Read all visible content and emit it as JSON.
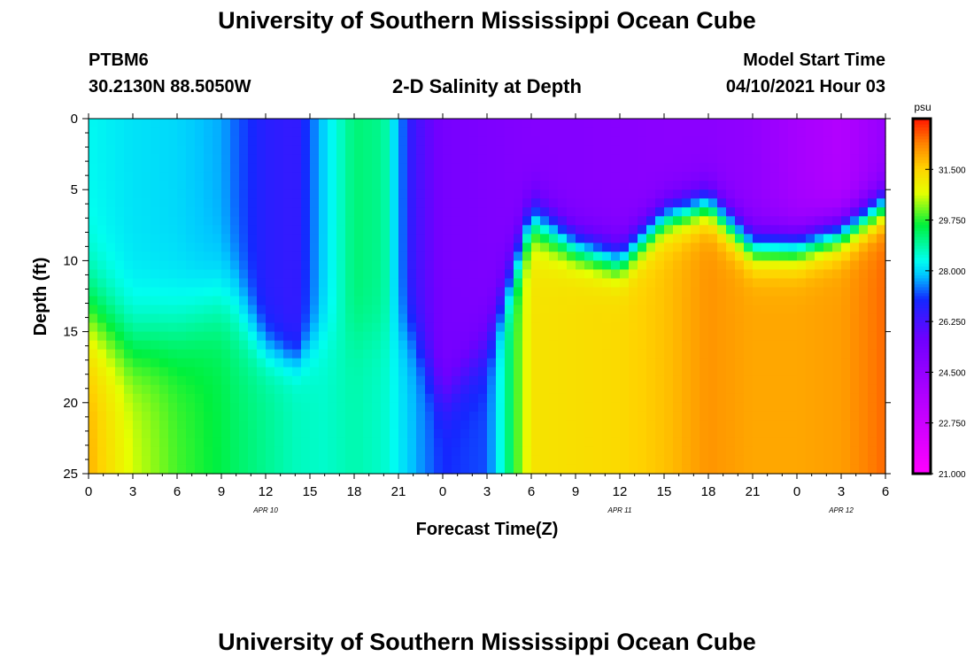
{
  "page": {
    "title_top": "University of Southern Mississippi Ocean Cube",
    "title_bottom": "University of Southern Mississippi Ocean Cube",
    "station_id": "PTBM6",
    "station_coords": "30.2130N  88.5050W",
    "plot_title": "2-D Salinity at Depth",
    "model_start_label": "Model Start Time",
    "model_start_value": "04/10/2021 Hour 03"
  },
  "chart_data": {
    "type": "heatmap",
    "title": "2-D Salinity at Depth",
    "xlabel": "Forecast Time(Z)",
    "ylabel": "Depth (ft)",
    "x_range_hours": [
      0,
      54
    ],
    "y_range_ft": [
      0,
      25
    ],
    "x_ticks": [
      "0",
      "3",
      "6",
      "9",
      "12",
      "15",
      "18",
      "21",
      "0",
      "3",
      "6",
      "9",
      "12",
      "15",
      "18",
      "21",
      "0",
      "3",
      "6"
    ],
    "y_ticks": [
      "0",
      "5",
      "10",
      "15",
      "20",
      "25"
    ],
    "date_labels": [
      {
        "text": "APR 10",
        "hour": 12
      },
      {
        "text": "APR 11",
        "hour": 36
      },
      {
        "text": "APR 12",
        "hour": 51
      }
    ],
    "colorbar": {
      "unit": "psu",
      "min": 21.0,
      "max": 33.25,
      "ticks": [
        "21.000",
        "22.750",
        "24.500",
        "26.250",
        "28.000",
        "29.750",
        "31.500"
      ]
    },
    "columns": [
      {
        "hour": 0,
        "surface": 28.3,
        "bottom": 31.9,
        "thermocline_ft": 14,
        "width_ft": 8
      },
      {
        "hour": 3,
        "surface": 28.1,
        "bottom": 30.6,
        "thermocline_ft": 16,
        "width_ft": 7
      },
      {
        "hour": 6,
        "surface": 28.0,
        "bottom": 29.9,
        "thermocline_ft": 15,
        "width_ft": 7
      },
      {
        "hour": 9,
        "surface": 27.7,
        "bottom": 29.5,
        "thermocline_ft": 13,
        "width_ft": 7
      },
      {
        "hour": 10,
        "surface": 27.3,
        "bottom": 29.3,
        "thermocline_ft": 13,
        "width_ft": 7
      },
      {
        "hour": 12,
        "surface": 26.7,
        "bottom": 29.0,
        "thermocline_ft": 16,
        "width_ft": 4
      },
      {
        "hour": 14,
        "surface": 26.5,
        "bottom": 28.7,
        "thermocline_ft": 17,
        "width_ft": 3
      },
      {
        "hour": 16,
        "surface": 28.0,
        "bottom": 28.6,
        "thermocline_ft": 15,
        "width_ft": 5
      },
      {
        "hour": 18,
        "surface": 29.2,
        "bottom": 28.8,
        "thermocline_ft": 15,
        "width_ft": 5
      },
      {
        "hour": 20,
        "surface": 29.0,
        "bottom": 28.6,
        "thermocline_ft": 15,
        "width_ft": 5
      },
      {
        "hour": 22,
        "surface": 26.4,
        "bottom": 27.8,
        "thermocline_ft": 15,
        "width_ft": 5
      },
      {
        "hour": 24,
        "surface": 25.4,
        "bottom": 27.0,
        "thermocline_ft": 20,
        "width_ft": 4
      },
      {
        "hour": 27,
        "surface": 25.2,
        "bottom": 27.2,
        "thermocline_ft": 16,
        "width_ft": 5
      },
      {
        "hour": 30,
        "surface": 25.0,
        "bottom": 31.2,
        "thermocline_ft": 7,
        "width_ft": 4
      },
      {
        "hour": 33,
        "surface": 25.0,
        "bottom": 31.3,
        "thermocline_ft": 9,
        "width_ft": 3
      },
      {
        "hour": 36,
        "surface": 24.9,
        "bottom": 31.4,
        "thermocline_ft": 10,
        "width_ft": 3
      },
      {
        "hour": 39,
        "surface": 24.8,
        "bottom": 31.7,
        "thermocline_ft": 7,
        "width_ft": 3
      },
      {
        "hour": 42,
        "surface": 24.8,
        "bottom": 32.2,
        "thermocline_ft": 6,
        "width_ft": 3
      },
      {
        "hour": 45,
        "surface": 24.6,
        "bottom": 32.0,
        "thermocline_ft": 9,
        "width_ft": 3
      },
      {
        "hour": 48,
        "surface": 24.0,
        "bottom": 32.0,
        "thermocline_ft": 9,
        "width_ft": 3
      },
      {
        "hour": 51,
        "surface": 23.6,
        "bottom": 32.1,
        "thermocline_ft": 8,
        "width_ft": 3
      },
      {
        "hour": 54,
        "surface": 24.5,
        "bottom": 32.6,
        "thermocline_ft": 6,
        "width_ft": 3
      }
    ]
  }
}
